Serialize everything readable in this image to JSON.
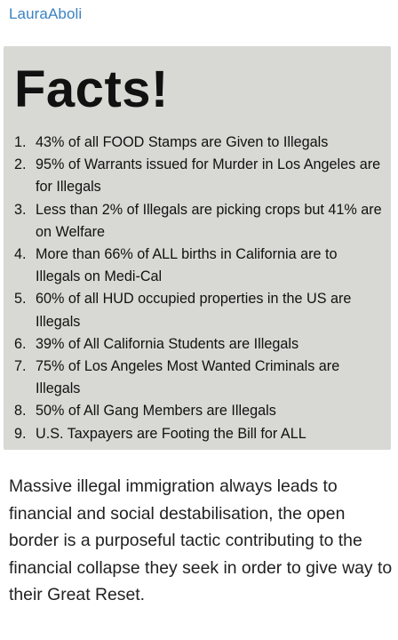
{
  "post": {
    "author": "LauraAboli",
    "image": {
      "title": "Facts!",
      "items": [
        {
          "num": "1.",
          "text": "43% of all FOOD Stamps are Given to Illegals"
        },
        {
          "num": "2.",
          "text": "95% of Warrants issued for Murder in Los Angeles are for Illegals"
        },
        {
          "num": "3.",
          "text": "Less than 2% of Illegals are picking crops but 41% are on Welfare"
        },
        {
          "num": "4.",
          "text": "More than 66% of ALL births in California are to Illegals on Medi-Cal"
        },
        {
          "num": "5.",
          "text": "60% of all HUD occupied properties in the US are Illegals"
        },
        {
          "num": "6.",
          "text": "39% of All California Students are Illegals"
        },
        {
          "num": "7.",
          "text": "75% of Los Angeles Most Wanted Criminals are Illegals"
        },
        {
          "num": "8.",
          "text": "50% of All Gang Members are Illegals"
        },
        {
          "num": "9.",
          "text": "U.S. Taxpayers are Footing the Bill for ALL"
        }
      ]
    },
    "caption": "Massive illegal immigration always leads to financial and social destabilisation, the open border is a purposeful tactic contributing to the financial collapse they seek in order to give way to their Great Reset."
  }
}
